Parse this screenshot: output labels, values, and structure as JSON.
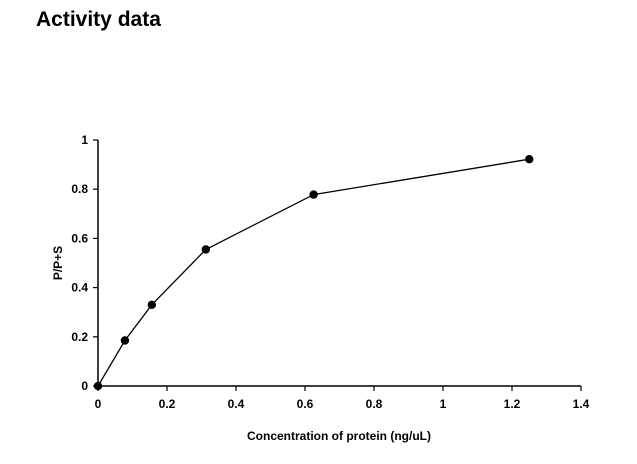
{
  "page": {
    "title": "Activity data"
  },
  "chart_data": {
    "type": "line",
    "title": "Activity data",
    "xlabel": "Concentration of protein (ng/uL)",
    "ylabel": "P/P+S",
    "xlim": [
      0,
      1.4
    ],
    "ylim": [
      0,
      1
    ],
    "xticks": [
      0,
      0.2,
      0.4,
      0.6,
      0.8,
      1,
      1.2,
      1.4
    ],
    "xtick_labels": [
      "0",
      "0.2",
      "0.4",
      "0.6",
      "0.8",
      "1",
      "1.2",
      "1.4"
    ],
    "yticks": [
      0,
      0.2,
      0.4,
      0.6,
      0.8,
      1
    ],
    "ytick_labels": [
      "0",
      "0.2",
      "0.4",
      "0.6",
      "0.8",
      "1"
    ],
    "grid": false,
    "legend": "none",
    "series": [
      {
        "color": "#000000",
        "marker": "circle",
        "x": [
          0,
          0.078,
          0.156,
          0.3125,
          0.625,
          1.25
        ],
        "y": [
          0,
          0.185,
          0.33,
          0.555,
          0.778,
          0.922
        ]
      }
    ]
  }
}
